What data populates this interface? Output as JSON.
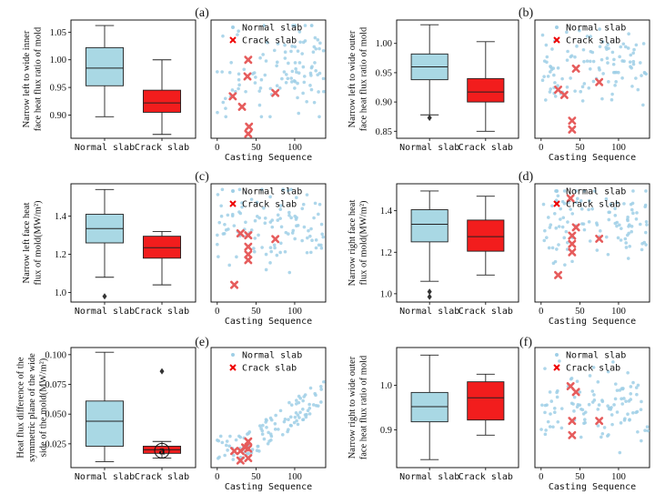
{
  "colors": {
    "normal_box": "#a9d8e4",
    "crack_box": "#f21d1d",
    "normal_point": "#9fcfe6",
    "crack_point": "#e65c5c",
    "axis": "#000000"
  },
  "chart_data": [
    {
      "panel": "(a)",
      "type": "box",
      "ylabel_lines": [
        "Narrow left to wide inner",
        "face heat flux ratio of mold"
      ],
      "categories": [
        "Normal slab",
        "Crack slab"
      ],
      "yticks": [
        "0.90",
        "0.95",
        "1.00",
        "1.05"
      ],
      "ytick_values": [
        0.9,
        0.95,
        1.0,
        1.05
      ],
      "ylim": [
        0.858,
        1.072
      ],
      "boxes": [
        {
          "min": 0.897,
          "q1": 0.953,
          "median": 0.985,
          "q3": 1.022,
          "max": 1.062,
          "outliers": []
        },
        {
          "min": 0.865,
          "q1": 0.905,
          "median": 0.922,
          "q3": 0.945,
          "max": 1.0,
          "outliers": []
        }
      ]
    },
    {
      "panel": "(a)",
      "type": "scatter",
      "xlabel": "Casting Sequence",
      "xticks": [
        "0",
        "50",
        "100"
      ],
      "xtick_values": [
        0,
        50,
        100
      ],
      "xlim": [
        -8,
        140
      ],
      "ylim": [
        0.858,
        1.072
      ],
      "legend": [
        "Normal slab",
        "Crack slab"
      ],
      "crack_points": [
        [
          40,
          1.0
        ],
        [
          39,
          0.97
        ],
        [
          20,
          0.934
        ],
        [
          75,
          0.94
        ],
        [
          32,
          0.915
        ],
        [
          41,
          0.879
        ],
        [
          40,
          0.866
        ]
      ]
    },
    {
      "panel": "(b)",
      "type": "box",
      "ylabel_lines": [
        "Narrow left to wide outer",
        "face heat flux ratio of mold"
      ],
      "categories": [
        "Normal slab",
        "Crack slab"
      ],
      "yticks": [
        "0.85",
        "0.90",
        "0.95",
        "1.00"
      ],
      "ytick_values": [
        0.85,
        0.9,
        0.95,
        1.0
      ],
      "ylim": [
        0.838,
        1.04
      ],
      "boxes": [
        {
          "min": 0.878,
          "q1": 0.938,
          "median": 0.96,
          "q3": 0.982,
          "max": 1.032,
          "outliers": [
            0.873
          ]
        },
        {
          "min": 0.85,
          "q1": 0.9,
          "median": 0.917,
          "q3": 0.94,
          "max": 1.003,
          "outliers": []
        }
      ]
    },
    {
      "panel": "(b)",
      "type": "scatter",
      "xlabel": "Casting Sequence",
      "xticks": [
        "0",
        "50",
        "100"
      ],
      "xtick_values": [
        0,
        50,
        100
      ],
      "xlim": [
        -8,
        140
      ],
      "ylim": [
        0.838,
        1.04
      ],
      "legend": [
        "Normal slab",
        "Crack slab"
      ],
      "crack_points": [
        [
          45,
          0.957
        ],
        [
          22,
          0.921
        ],
        [
          30,
          0.912
        ],
        [
          75,
          0.934
        ],
        [
          40,
          0.868
        ],
        [
          40,
          0.853
        ]
      ]
    },
    {
      "panel": "(c)",
      "type": "box",
      "ylabel_lines": [
        "Narrow left face heat",
        "flux of mold(MW/m²)"
      ],
      "categories": [
        "Normal slab",
        "Crack slab"
      ],
      "yticks": [
        "1.0",
        "1.2",
        "1.4"
      ],
      "ytick_values": [
        1.0,
        1.2,
        1.4
      ],
      "ylim": [
        0.95,
        1.57
      ],
      "boxes": [
        {
          "min": 1.08,
          "q1": 1.26,
          "median": 1.335,
          "q3": 1.41,
          "max": 1.54,
          "outliers": [
            0.98
          ]
        },
        {
          "min": 1.04,
          "q1": 1.18,
          "median": 1.235,
          "q3": 1.295,
          "max": 1.32,
          "outliers": []
        }
      ]
    },
    {
      "panel": "(c)",
      "type": "scatter",
      "xlabel": "Casting Sequence",
      "xticks": [
        "0",
        "50",
        "100"
      ],
      "xtick_values": [
        0,
        50,
        100
      ],
      "xlim": [
        -8,
        140
      ],
      "ylim": [
        0.95,
        1.57
      ],
      "legend": [
        "Normal slab",
        "Crack slab"
      ],
      "crack_points": [
        [
          30,
          1.31
        ],
        [
          40,
          1.3
        ],
        [
          75,
          1.28
        ],
        [
          40,
          1.24
        ],
        [
          40,
          1.2
        ],
        [
          40,
          1.17
        ],
        [
          22,
          1.04
        ]
      ]
    },
    {
      "panel": "(d)",
      "type": "box",
      "ylabel_lines": [
        "Narrow right face heat",
        "flux of mold(MW/m²)"
      ],
      "categories": [
        "Normal slab",
        "Crack slab"
      ],
      "yticks": [
        "1.0",
        "1.2",
        "1.4"
      ],
      "ytick_values": [
        1.0,
        1.2,
        1.4
      ],
      "ylim": [
        0.96,
        1.53
      ],
      "boxes": [
        {
          "min": 1.06,
          "q1": 1.25,
          "median": 1.335,
          "q3": 1.405,
          "max": 1.495,
          "outliers": [
            1.01,
            0.985
          ]
        },
        {
          "min": 1.09,
          "q1": 1.205,
          "median": 1.275,
          "q3": 1.355,
          "max": 1.47,
          "outliers": []
        }
      ]
    },
    {
      "panel": "(d)",
      "type": "scatter",
      "xlabel": "Casting Sequence",
      "xticks": [
        "0",
        "50",
        "100"
      ],
      "xtick_values": [
        0,
        50,
        100
      ],
      "xlim": [
        -8,
        140
      ],
      "ylim": [
        0.96,
        1.53
      ],
      "legend": [
        "Normal slab",
        "Crack slab"
      ],
      "crack_points": [
        [
          38,
          1.46
        ],
        [
          45,
          1.32
        ],
        [
          40,
          1.28
        ],
        [
          40,
          1.24
        ],
        [
          75,
          1.265
        ],
        [
          40,
          1.2
        ],
        [
          22,
          1.09
        ]
      ]
    },
    {
      "panel": "(e)",
      "type": "box",
      "ylabel_lines": [
        "Heat flux difference of the",
        "symmetric plane of the wide",
        "side of the mold(MW/m²)"
      ],
      "categories": [
        "Normal slab",
        "Crack slab"
      ],
      "yticks": [
        "0.025",
        "0.050",
        "0.075",
        "0.100"
      ],
      "ytick_values": [
        0.025,
        0.05,
        0.075,
        0.1
      ],
      "ylim": [
        0.005,
        0.106
      ],
      "boxes": [
        {
          "min": 0.01,
          "q1": 0.023,
          "median": 0.044,
          "q3": 0.061,
          "max": 0.102,
          "outliers": []
        },
        {
          "min": 0.013,
          "q1": 0.017,
          "median": 0.02,
          "q3": 0.023,
          "max": 0.027,
          "outliers": [
            0.086
          ]
        }
      ],
      "annotation": "a"
    },
    {
      "panel": "(e)",
      "type": "scatter",
      "xlabel": "Casting Sequence",
      "xticks": [
        "0",
        "50",
        "100"
      ],
      "xtick_values": [
        0,
        50,
        100
      ],
      "xlim": [
        -8,
        140
      ],
      "ylim": [
        0.005,
        0.106
      ],
      "legend": [
        "Normal slab",
        "Crack slab"
      ],
      "crack_points": [
        [
          40,
          0.027
        ],
        [
          36,
          0.022
        ],
        [
          40,
          0.021
        ],
        [
          22,
          0.019
        ],
        [
          30,
          0.019
        ],
        [
          40,
          0.013
        ],
        [
          30,
          0.011
        ]
      ]
    },
    {
      "panel": "(f)",
      "type": "box",
      "ylabel_lines": [
        "Narrow right to wide outer",
        "face heat flux ratio of mold"
      ],
      "categories": [
        "Normal slab",
        "Crack slab"
      ],
      "yticks": [
        "0.9",
        "1.0"
      ],
      "ytick_values": [
        0.9,
        1.0
      ],
      "ylim": [
        0.815,
        1.085
      ],
      "boxes": [
        {
          "min": 0.833,
          "q1": 0.918,
          "median": 0.952,
          "q3": 0.984,
          "max": 1.068,
          "outliers": []
        },
        {
          "min": 0.888,
          "q1": 0.922,
          "median": 0.972,
          "q3": 1.008,
          "max": 1.025,
          "outliers": []
        }
      ]
    },
    {
      "panel": "(f)",
      "type": "scatter",
      "xlabel": "Casting Sequence",
      "xticks": [
        "0",
        "50",
        "100"
      ],
      "xtick_values": [
        0,
        50,
        100
      ],
      "xlim": [
        -8,
        140
      ],
      "ylim": [
        0.815,
        1.085
      ],
      "legend": [
        "Normal slab",
        "Crack slab"
      ],
      "crack_points": [
        [
          38,
          0.998
        ],
        [
          45,
          0.985
        ],
        [
          40,
          0.92
        ],
        [
          75,
          0.92
        ],
        [
          40,
          0.888
        ]
      ]
    }
  ]
}
